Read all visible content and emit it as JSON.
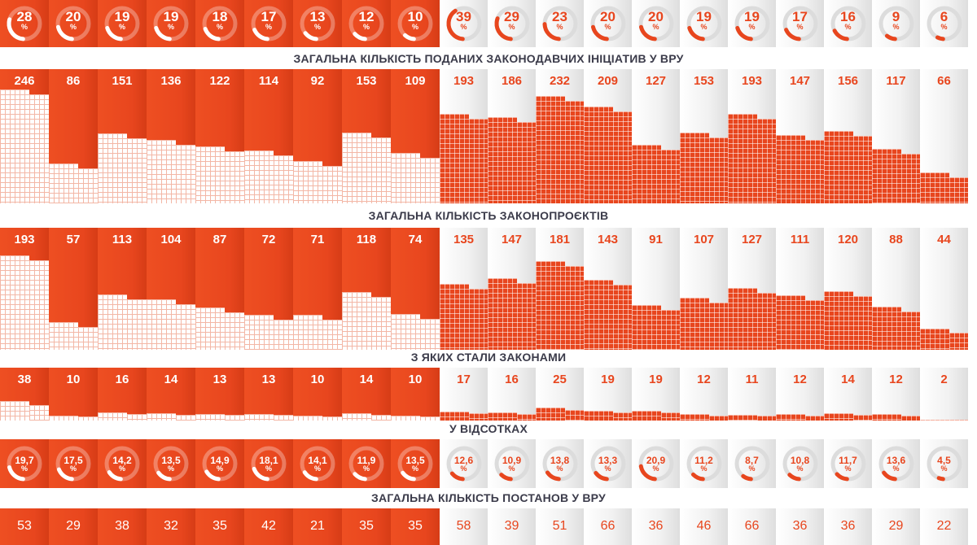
{
  "chart_data": [
    {
      "type": "pie",
      "title": "",
      "values": [
        28,
        20,
        19,
        19,
        18,
        17,
        13,
        12,
        10,
        39,
        29,
        23,
        20,
        20,
        19,
        19,
        17,
        16,
        9,
        6
      ],
      "unit": "%"
    },
    {
      "type": "bar",
      "title": "ЗАГАЛЬНА КІЛЬКІСТЬ ПОДАНИХ ЗАКОНОДАВЧИХ ІНІЦІАТИВ У ВРУ",
      "values": [
        246,
        86,
        151,
        136,
        122,
        114,
        92,
        153,
        109,
        193,
        186,
        232,
        209,
        127,
        153,
        193,
        147,
        156,
        117,
        66
      ]
    },
    {
      "type": "bar",
      "title": "ЗАГАЛЬНА КІЛЬКІСТЬ ЗАКОНОПРОЄКТІВ",
      "values": [
        193,
        57,
        113,
        104,
        87,
        72,
        71,
        118,
        74,
        135,
        147,
        181,
        143,
        91,
        107,
        127,
        111,
        120,
        88,
        44
      ]
    },
    {
      "type": "bar",
      "title": "З ЯКИХ СТАЛИ ЗАКОНАМИ",
      "values": [
        38,
        10,
        16,
        14,
        13,
        13,
        10,
        14,
        10,
        17,
        16,
        25,
        19,
        19,
        12,
        11,
        12,
        14,
        12,
        2
      ]
    },
    {
      "type": "pie",
      "title": "У ВІДСОТКАХ",
      "values": [
        "19,7",
        "17,5",
        "14,2",
        "13,5",
        "14,9",
        "18,1",
        "14,1",
        "11,9",
        "13,5",
        "12,6",
        "10,9",
        "13,8",
        "13,3",
        "20,9",
        "11,2",
        "8,7",
        "10,8",
        "11,7",
        "13,6",
        "4,5"
      ],
      "unit": "%"
    },
    {
      "type": "table",
      "title": "ЗАГАЛЬНА КІЛЬКІСТЬ ПОСТАНОВ У ВРУ",
      "values": [
        53,
        29,
        38,
        32,
        35,
        42,
        21,
        35,
        35,
        58,
        39,
        51,
        66,
        36,
        46,
        66,
        36,
        36,
        29,
        22
      ]
    }
  ],
  "groups": {
    "orange_count": 9,
    "grey_count": 11
  },
  "colors": {
    "accent": "#e8461e",
    "title": "#3b3b4a"
  }
}
